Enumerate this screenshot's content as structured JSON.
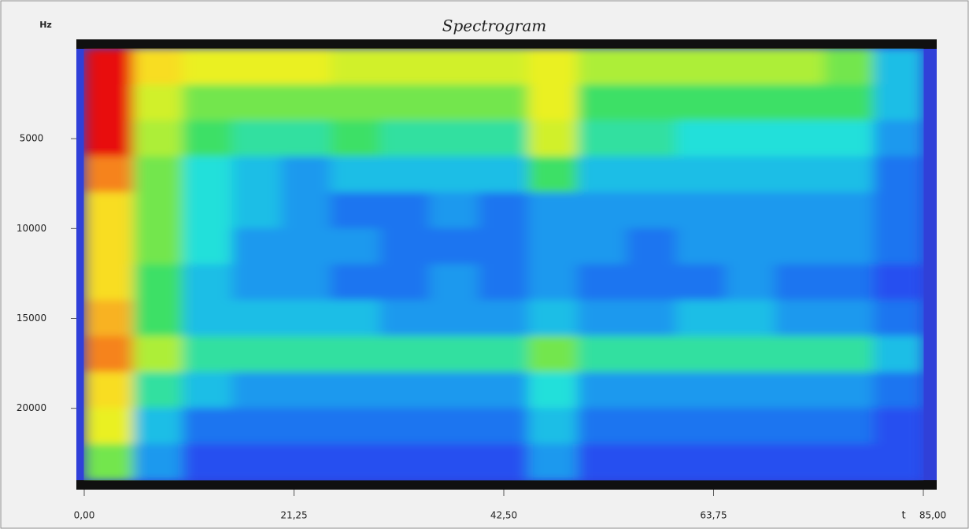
{
  "chart_data": {
    "type": "heatmap",
    "title": "Spectrogram",
    "y_label": "Hz",
    "x_label": "t",
    "x": [
      2.5,
      7.5,
      12.5,
      17.5,
      22.5,
      27.5,
      32.5,
      37.5,
      42.5,
      47.5,
      52.5,
      57.5,
      62.5,
      67.5,
      72.5,
      77.5,
      82.5
    ],
    "y": [
      1000,
      3000,
      5000,
      7000,
      9000,
      11000,
      13000,
      15000,
      17000,
      19000,
      21000,
      23000
    ],
    "z": [
      [
        10,
        8,
        7.5,
        7.5,
        7.5,
        7,
        7,
        7,
        7,
        7.5,
        6.5,
        6.5,
        6.5,
        6.5,
        6.5,
        6,
        4
      ],
      [
        10,
        7,
        6,
        6,
        6,
        6,
        6,
        6,
        6,
        7.5,
        5.5,
        5.5,
        5.5,
        5.5,
        5.5,
        5.5,
        4
      ],
      [
        10,
        6.5,
        5.5,
        5,
        5,
        5.5,
        5,
        5,
        5,
        7,
        5,
        5,
        4.5,
        4.5,
        4.5,
        4.5,
        3.5
      ],
      [
        9,
        6,
        4.5,
        4,
        3.5,
        4,
        4,
        4,
        4,
        5.5,
        4,
        4,
        4,
        4,
        4,
        4,
        3
      ],
      [
        8,
        6,
        4.5,
        4,
        3.5,
        3,
        3,
        3.5,
        3,
        3.5,
        3.5,
        3.5,
        3.5,
        3.5,
        3.5,
        3.5,
        3
      ],
      [
        8,
        6,
        4.5,
        3.5,
        3.5,
        3.5,
        3,
        3,
        3,
        3.5,
        3.5,
        3,
        3.5,
        3.5,
        3.5,
        3.5,
        3
      ],
      [
        8,
        5.5,
        4,
        3.5,
        3.5,
        3,
        3,
        3.5,
        3,
        3.5,
        3,
        3,
        3,
        3.5,
        3,
        3,
        2.5
      ],
      [
        8.5,
        5.5,
        4,
        4,
        4,
        4,
        3.5,
        3.5,
        3.5,
        4,
        3.5,
        3.5,
        4,
        4,
        3.5,
        3.5,
        3
      ],
      [
        9,
        6.5,
        5,
        5,
        5,
        5,
        5,
        5,
        5,
        6,
        5,
        5,
        5,
        5,
        5,
        5,
        4
      ],
      [
        8,
        5,
        4,
        3.5,
        3.5,
        3.5,
        3.5,
        3.5,
        3.5,
        4.5,
        3.5,
        3.5,
        3.5,
        3.5,
        3.5,
        3.5,
        3
      ],
      [
        7.5,
        4,
        3,
        3,
        3,
        3,
        3,
        3,
        3,
        4,
        3,
        3,
        3,
        3,
        3,
        3,
        2.5
      ],
      [
        6,
        3.5,
        2.5,
        2.5,
        2.5,
        2.5,
        2.5,
        2.5,
        2.5,
        3.5,
        2.5,
        2.5,
        2.5,
        2.5,
        2.5,
        2.5,
        2.5
      ]
    ],
    "zlim": [
      0,
      10
    ],
    "colorscale": [
      "#1a0030",
      "#6a1ab8",
      "#2a3cf0",
      "#1a8cf0",
      "#20e0e0",
      "#40e060",
      "#c0f030",
      "#f8f020",
      "#f89020",
      "#e81010"
    ],
    "xlim": [
      0,
      85
    ],
    "ylim": [
      0,
      24000
    ],
    "y_inverted": true,
    "xticks": [
      {
        "value": 0,
        "label": "0,00"
      },
      {
        "value": 21.25,
        "label": "21,25"
      },
      {
        "value": 42.5,
        "label": "42,50"
      },
      {
        "value": 63.75,
        "label": "63,75"
      },
      {
        "value": 85,
        "label": "85,00"
      }
    ],
    "yticks": [
      5000,
      10000,
      15000,
      20000
    ]
  }
}
